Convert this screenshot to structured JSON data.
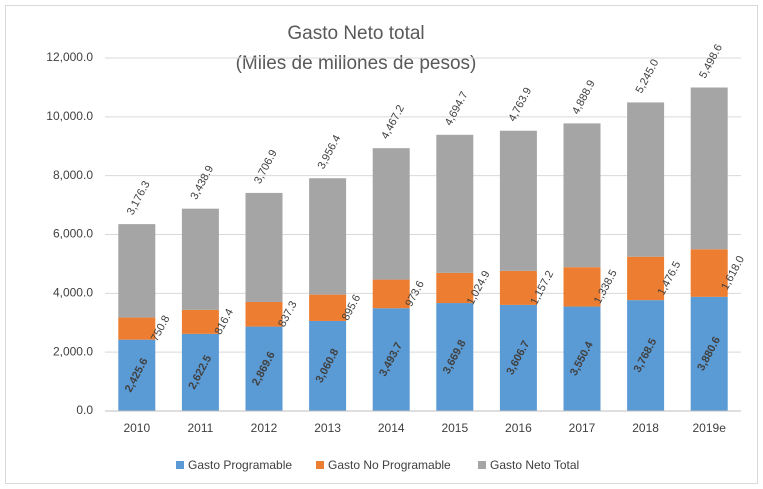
{
  "chart_data": {
    "type": "stacked_bar",
    "title": "Gasto Neto total",
    "subtitle": "(Miles de millones de pesos)",
    "categories": [
      "2010",
      "2011",
      "2012",
      "2013",
      "2014",
      "2015",
      "2016",
      "2017",
      "2018",
      "2019e"
    ],
    "series": [
      {
        "name": "Gasto Programable",
        "color": "#5b9bd5",
        "values": [
          2425.6,
          2622.5,
          2869.6,
          3060.8,
          3493.7,
          3669.8,
          3606.7,
          3550.4,
          3768.5,
          3880.6
        ],
        "value_labels": [
          "2,425.6",
          "2,622.5",
          "2,869.6",
          "3,060.8",
          "3,493.7",
          "3,669.8",
          "3,606.7",
          "3,550.4",
          "3,768.5",
          "3,880.6"
        ]
      },
      {
        "name": "Gasto No Programable",
        "color": "#ed7d31",
        "values": [
          750.8,
          816.4,
          837.3,
          895.6,
          973.6,
          1024.9,
          1157.2,
          1338.5,
          1476.5,
          1618.0
        ],
        "value_labels": [
          "750.8",
          "816.4",
          "837.3",
          "895.6",
          "973.6",
          "1,024.9",
          "1,157.2",
          "1,338.5",
          "1,476.5",
          "1,618.0"
        ]
      },
      {
        "name": "Gasto Neto Total",
        "color": "#a5a5a5",
        "values": [
          3176.3,
          3438.9,
          3706.9,
          3956.4,
          4467.2,
          4694.7,
          4763.9,
          4888.9,
          5245.0,
          5498.6
        ],
        "value_labels": [
          "3,176.3",
          "3,438.9",
          "3,706.9",
          "3,956.4",
          "4,467.2",
          "4,694.7",
          "4,763.9",
          "4,888.9",
          "5,245.0",
          "5,498.6"
        ]
      }
    ],
    "ylim": [
      0,
      12000
    ],
    "yticks": [
      {
        "value": 0,
        "label": "0.0"
      },
      {
        "value": 2000,
        "label": "2,000.0"
      },
      {
        "value": 4000,
        "label": "4,000.0"
      },
      {
        "value": 6000,
        "label": "6,000.0"
      },
      {
        "value": 8000,
        "label": "8,000.0"
      },
      {
        "value": 10000,
        "label": "10,000.0"
      },
      {
        "value": 12000,
        "label": "12,000.0"
      }
    ],
    "grid": true,
    "legend": "bottom"
  }
}
